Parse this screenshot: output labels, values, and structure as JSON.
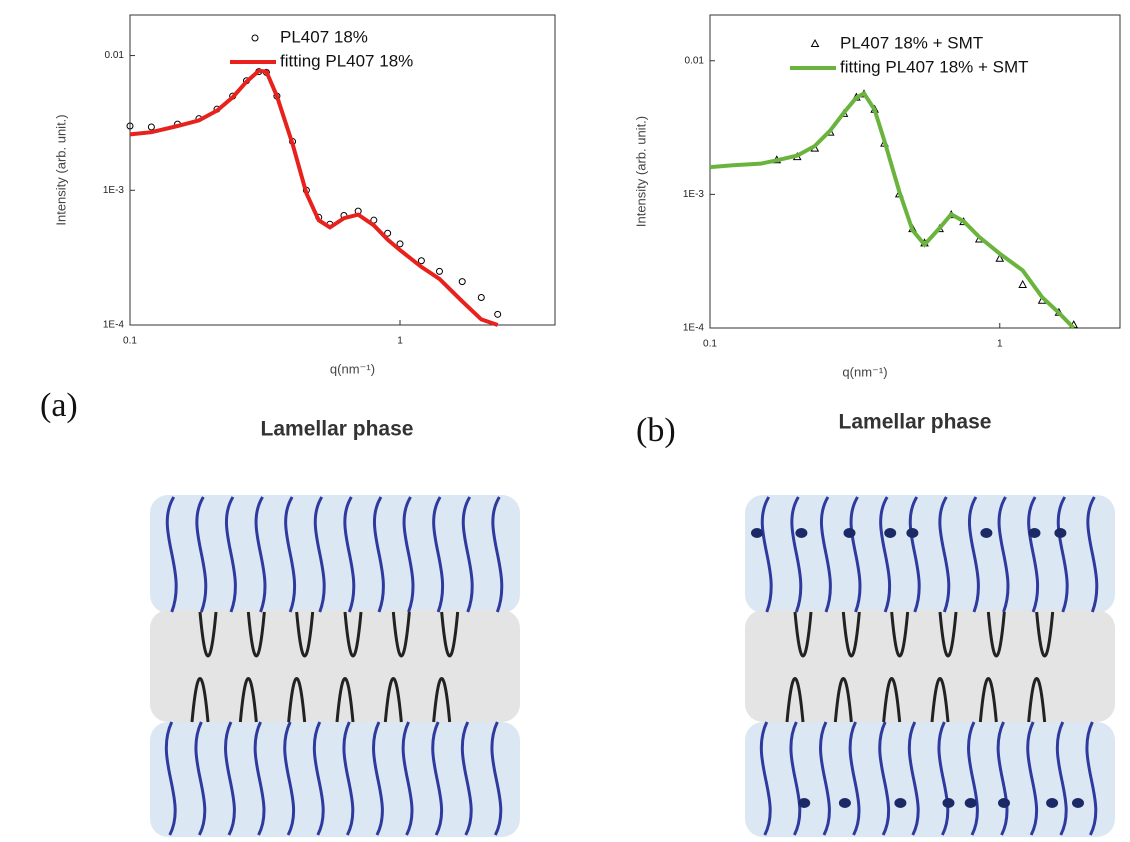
{
  "chart_data": [
    {
      "type": "line",
      "x_label": "q(nm⁻¹)",
      "y_label": "Intensity (arb. unit.)",
      "x": [
        0.1,
        0.12,
        0.15,
        0.18,
        0.21,
        0.24,
        0.27,
        0.3,
        0.32,
        0.35,
        0.4,
        0.45,
        0.5,
        0.55,
        0.62,
        0.7,
        0.8,
        0.9,
        1.0,
        1.2,
        1.4,
        1.7,
        2.0,
        2.3
      ],
      "series": [
        {
          "name": "PL407 18%",
          "color": "#000000",
          "marker": "circle",
          "values": [
            0.003,
            0.00295,
            0.0031,
            0.0034,
            0.004,
            0.005,
            0.0065,
            0.0076,
            0.0075,
            0.005,
            0.0023,
            0.001,
            0.00063,
            0.00056,
            0.00065,
            0.0007,
            0.0006,
            0.00048,
            0.0004,
            0.0003,
            0.00025,
            0.00021,
            0.00016,
            0.00012
          ]
        },
        {
          "name": "fitting PL407 18%",
          "color": "#e8211d",
          "marker": "none",
          "values": [
            0.0026,
            0.0027,
            0.003,
            0.0033,
            0.0039,
            0.0049,
            0.0064,
            0.0077,
            0.0076,
            0.005,
            0.0022,
            0.00095,
            0.0006,
            0.00053,
            0.00062,
            0.00066,
            0.00055,
            0.00043,
            0.00036,
            0.00027,
            0.00022,
            0.00015,
            0.00011,
            0.0001
          ]
        }
      ],
      "xlim": [
        0.1,
        3.75
      ],
      "ylim": [
        0.0001,
        0.02
      ],
      "log_x": true,
      "log_y": true,
      "xticks": [
        0.1,
        1
      ],
      "yticks": [
        {
          "value": 0.0001,
          "label": "1E-4"
        },
        {
          "value": 0.001,
          "label": "1E-3"
        },
        0.01
      ],
      "legend": "upper right"
    },
    {
      "type": "line",
      "x_label": "q(nm⁻¹)",
      "y_label": "Intensity (arb. unit.)",
      "x": [
        0.1,
        0.12,
        0.15,
        0.17,
        0.2,
        0.23,
        0.26,
        0.29,
        0.32,
        0.34,
        0.37,
        0.4,
        0.45,
        0.5,
        0.55,
        0.62,
        0.68,
        0.75,
        0.85,
        1.0,
        1.2,
        1.4,
        1.6,
        1.8
      ],
      "series": [
        {
          "name": "PL407 18% + SMT",
          "color": "#000000",
          "marker": "triangle",
          "values": [
            null,
            null,
            null,
            0.0018,
            0.0019,
            0.0022,
            0.0029,
            0.004,
            0.0053,
            0.0056,
            0.0043,
            0.0024,
            0.001,
            0.00055,
            0.00043,
            0.00055,
            0.0007,
            0.00062,
            0.00046,
            0.00033,
            0.00021,
            0.00016,
            0.00013,
            0.000105
          ]
        },
        {
          "name": "fitting PL407 18% + SMT",
          "color": "#6ab43e",
          "marker": "none",
          "values": [
            0.0016,
            0.00165,
            0.0017,
            0.0018,
            0.00195,
            0.0023,
            0.003,
            0.0041,
            0.0053,
            0.0057,
            0.0043,
            0.0025,
            0.00105,
            0.00054,
            0.00042,
            0.00056,
            0.00071,
            0.00063,
            0.00048,
            0.00036,
            0.00027,
            0.00017,
            0.00013,
            0.0001
          ]
        }
      ],
      "xlim": [
        0.1,
        2.6
      ],
      "ylim": [
        0.0001,
        0.022
      ],
      "log_x": true,
      "log_y": true,
      "xticks": [
        0.1,
        1
      ],
      "yticks": [
        {
          "value": 0.0001,
          "label": "1E-4"
        },
        {
          "value": 0.001,
          "label": "1E-3"
        },
        0.01
      ],
      "legend": "upper right"
    }
  ],
  "figure": {
    "panels": [
      {
        "label": "(a)",
        "subtitle": "Lamellar phase"
      },
      {
        "label": "(b)",
        "subtitle": "Lamellar phase"
      }
    ]
  }
}
